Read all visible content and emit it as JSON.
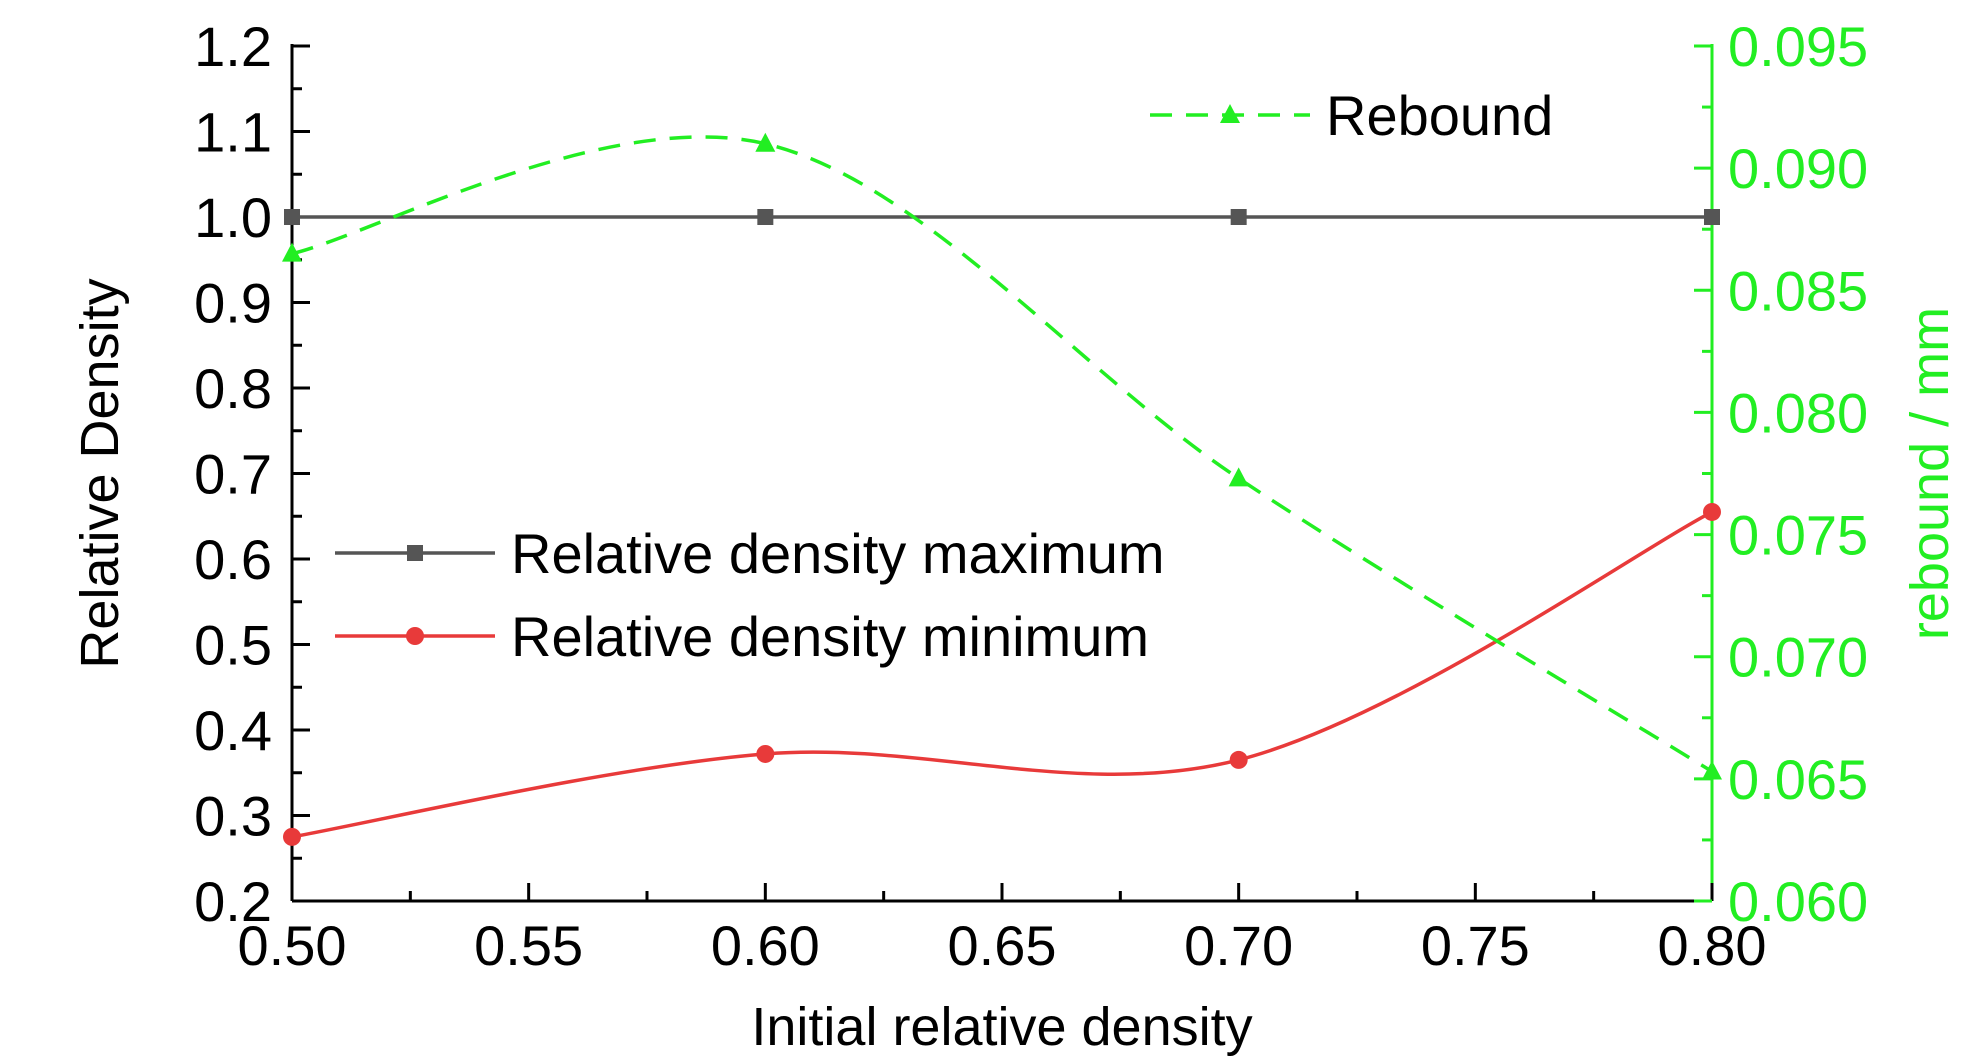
{
  "chart_data": {
    "type": "line",
    "xlabel": "Initial relative density",
    "ylabel_left": "Relative Density",
    "ylabel_right": "rebound / mm",
    "xlim": [
      0.5,
      0.8
    ],
    "ylim_left": [
      0.2,
      1.2
    ],
    "ylim_right": [
      0.06,
      0.095
    ],
    "x_ticks": [
      "0.50",
      "0.55",
      "0.60",
      "0.65",
      "0.70",
      "0.75",
      "0.80"
    ],
    "y_left_ticks": [
      "0.2",
      "0.3",
      "0.4",
      "0.5",
      "0.6",
      "0.7",
      "0.8",
      "0.9",
      "1.0",
      "1.1",
      "1.2"
    ],
    "y_right_ticks": [
      "0.060",
      "0.065",
      "0.070",
      "0.075",
      "0.080",
      "0.085",
      "0.090",
      "0.095"
    ],
    "grid": false,
    "colors": {
      "left_axis": "#000000",
      "right_axis": "#22ee22"
    },
    "series": [
      {
        "name": "Relative density maximum",
        "axis": "left",
        "x": [
          0.5,
          0.6,
          0.7,
          0.8
        ],
        "y": [
          1.0,
          1.0,
          1.0,
          1.0
        ],
        "color": "#555555",
        "marker": "square",
        "dash": "solid"
      },
      {
        "name": "Relative density minimum",
        "axis": "left",
        "x": [
          0.5,
          0.6,
          0.7,
          0.8
        ],
        "y": [
          0.275,
          0.372,
          0.365,
          0.655
        ],
        "color": "#e83a3a",
        "marker": "circle",
        "dash": "solid"
      },
      {
        "name": "Rebound",
        "axis": "right",
        "x": [
          0.5,
          0.6,
          0.7,
          0.8
        ],
        "y": [
          0.0865,
          0.091,
          0.0773,
          0.0653
        ],
        "color": "#22ee22",
        "marker": "triangle",
        "dash": "dashed"
      }
    ],
    "legend": [
      {
        "label": "Relative density maximum",
        "series": 0,
        "placement": "center-left"
      },
      {
        "label": "Relative density minimum",
        "series": 1,
        "placement": "center-left"
      },
      {
        "label": "Rebound",
        "series": 2,
        "placement": "top-center"
      }
    ]
  }
}
